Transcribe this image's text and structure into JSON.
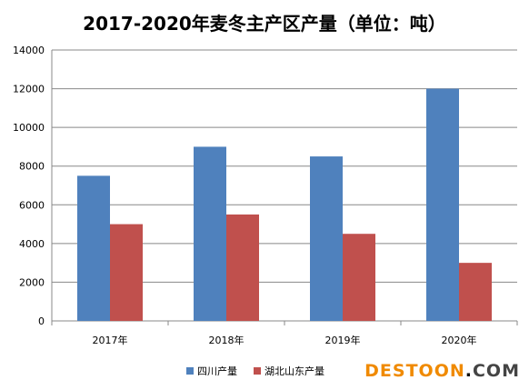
{
  "chart_data": {
    "type": "bar",
    "title": "2017-2020年麦冬主产区产量（单位：吨）",
    "categories": [
      "2017年",
      "2018年",
      "2019年",
      "2020年"
    ],
    "series": [
      {
        "name": "四川产量",
        "values": [
          7500,
          9000,
          8500,
          12000
        ],
        "color": "#4f81bd"
      },
      {
        "name": "湖北山东产量",
        "values": [
          5000,
          5500,
          4500,
          3000
        ],
        "color": "#c0504d"
      }
    ],
    "ylim": [
      0,
      14000
    ],
    "yticks": [
      0,
      2000,
      4000,
      6000,
      8000,
      10000,
      12000,
      14000
    ],
    "grid": true,
    "legend": "bottom"
  },
  "watermark": {
    "part1": "DESTOON",
    "part2": ".",
    "part3": "COM"
  }
}
